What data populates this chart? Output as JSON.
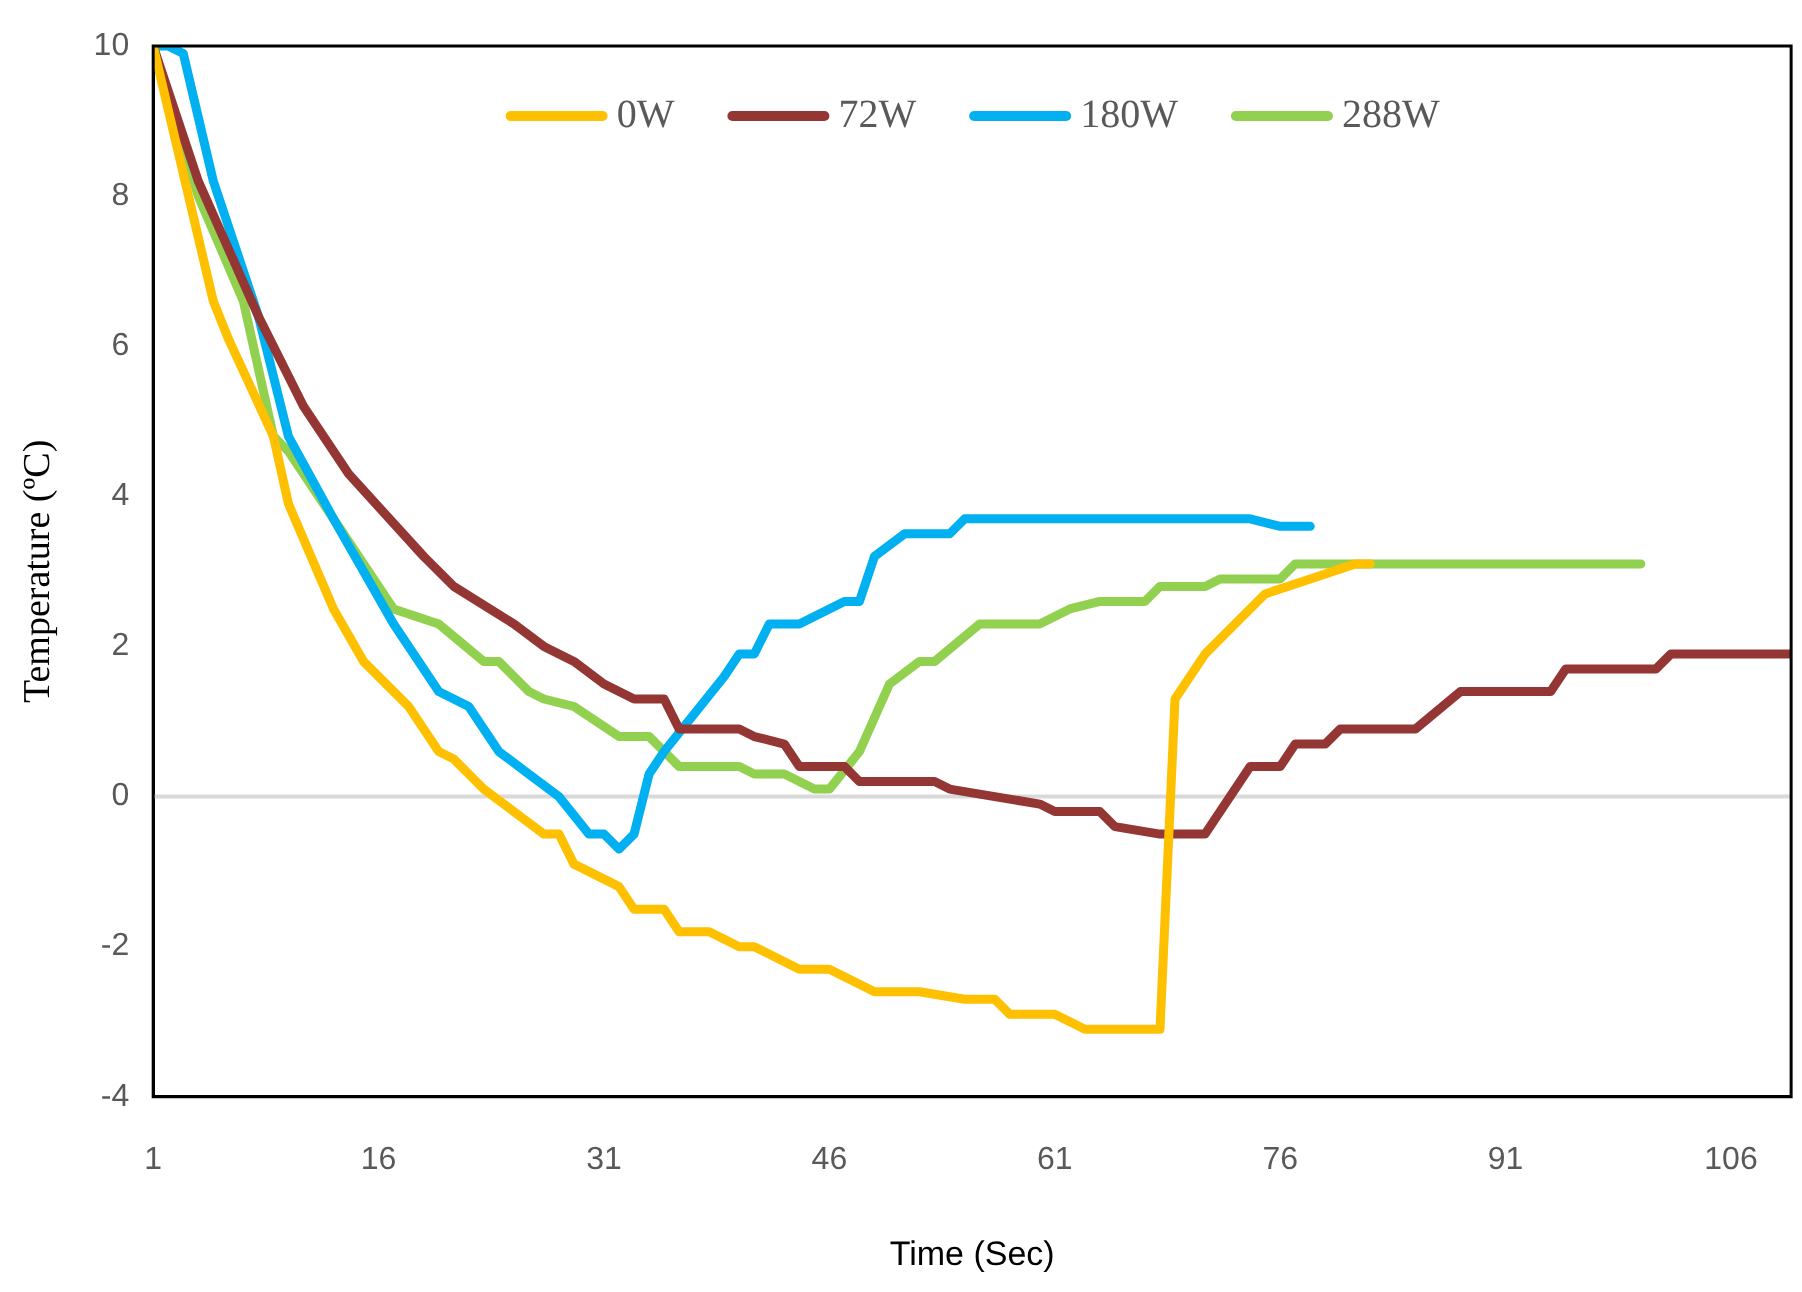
{
  "chart_data": {
    "type": "line",
    "xlabel": "Time (Sec)",
    "ylabel": "Temperature (ºC)",
    "xlim": [
      1,
      110
    ],
    "xticks": [
      1,
      16,
      31,
      46,
      61,
      76,
      91,
      106
    ],
    "ylim": [
      -4,
      10
    ],
    "yticks": [
      -4,
      -2,
      0,
      2,
      4,
      6,
      8,
      10
    ],
    "grid": false,
    "legend": "top",
    "marker": "none",
    "line_style": "solid",
    "ref_lines": [
      {
        "axis": "y",
        "value": 0,
        "color": "#d9d9d9"
      }
    ],
    "series": [
      {
        "name": "0W",
        "color": "#ffc000",
        "x": [
          1,
          5,
          6,
          9,
          10,
          13,
          15,
          18,
          20,
          21,
          23,
          25,
          27,
          28,
          29,
          32,
          33,
          35,
          36,
          38,
          40,
          41,
          44,
          46,
          49,
          52,
          55,
          57,
          58,
          61,
          63,
          68,
          69,
          71,
          73,
          75,
          78,
          81,
          82
        ],
        "values": [
          10,
          6.6,
          6.1,
          4.8,
          3.9,
          2.5,
          1.8,
          1.2,
          0.6,
          0.5,
          0.1,
          -0.2,
          -0.5,
          -0.5,
          -0.9,
          -1.2,
          -1.5,
          -1.5,
          -1.8,
          -1.8,
          -2.0,
          -2.0,
          -2.3,
          -2.3,
          -2.6,
          -2.6,
          -2.7,
          -2.7,
          -2.9,
          -2.9,
          -3.1,
          -3.1,
          1.3,
          1.9,
          2.3,
          2.7,
          2.9,
          3.1,
          3.1
        ]
      },
      {
        "name": "72W",
        "color": "#943634",
        "x": [
          1,
          4,
          8,
          11,
          14,
          19,
          21,
          25,
          27,
          29,
          31,
          33,
          35,
          36,
          40,
          41,
          43,
          44,
          47,
          48,
          53,
          54,
          57,
          60,
          61,
          64,
          65,
          68,
          71,
          74,
          76,
          77,
          79,
          80,
          85,
          88,
          94,
          95,
          101,
          102,
          110
        ],
        "values": [
          10,
          8.2,
          6.4,
          5.2,
          4.3,
          3.2,
          2.8,
          2.3,
          2.0,
          1.8,
          1.5,
          1.3,
          1.3,
          0.9,
          0.9,
          0.8,
          0.7,
          0.4,
          0.4,
          0.2,
          0.2,
          0.1,
          0.0,
          -0.1,
          -0.2,
          -0.2,
          -0.4,
          -0.5,
          -0.5,
          0.4,
          0.4,
          0.7,
          0.7,
          0.9,
          0.9,
          1.4,
          1.4,
          1.7,
          1.7,
          1.9,
          1.9
        ]
      },
      {
        "name": "180W",
        "color": "#00b0f0",
        "x": [
          1,
          2,
          3,
          5,
          8,
          10,
          13,
          17,
          20,
          22,
          24,
          26,
          28,
          30,
          31,
          32,
          33,
          34,
          35,
          39,
          40,
          41,
          42,
          44,
          46,
          47,
          48,
          49,
          51,
          54,
          55,
          74,
          76,
          78
        ],
        "values": [
          10,
          10,
          9.9,
          8.2,
          6.4,
          4.8,
          3.7,
          2.3,
          1.4,
          1.2,
          0.6,
          0.3,
          0.0,
          -0.5,
          -0.5,
          -0.7,
          -0.5,
          0.3,
          0.6,
          1.6,
          1.9,
          1.9,
          2.3,
          2.3,
          2.5,
          2.6,
          2.6,
          3.2,
          3.5,
          3.5,
          3.7,
          3.7,
          3.6,
          3.6
        ]
      },
      {
        "name": "288W",
        "color": "#92d050",
        "x": [
          1,
          4,
          7,
          9,
          10,
          13,
          17,
          20,
          23,
          24,
          26,
          27,
          29,
          32,
          34,
          36,
          40,
          41,
          43,
          45,
          46,
          48,
          50,
          52,
          53,
          56,
          60,
          62,
          64,
          67,
          68,
          71,
          72,
          76,
          77,
          100
        ],
        "values": [
          10,
          8,
          6.6,
          4.8,
          4.6,
          3.7,
          2.5,
          2.3,
          1.8,
          1.8,
          1.4,
          1.3,
          1.2,
          0.8,
          0.8,
          0.4,
          0.4,
          0.3,
          0.3,
          0.1,
          0.1,
          0.6,
          1.5,
          1.8,
          1.8,
          2.3,
          2.3,
          2.5,
          2.6,
          2.6,
          2.8,
          2.8,
          2.9,
          2.9,
          3.1,
          3.1
        ]
      }
    ]
  }
}
